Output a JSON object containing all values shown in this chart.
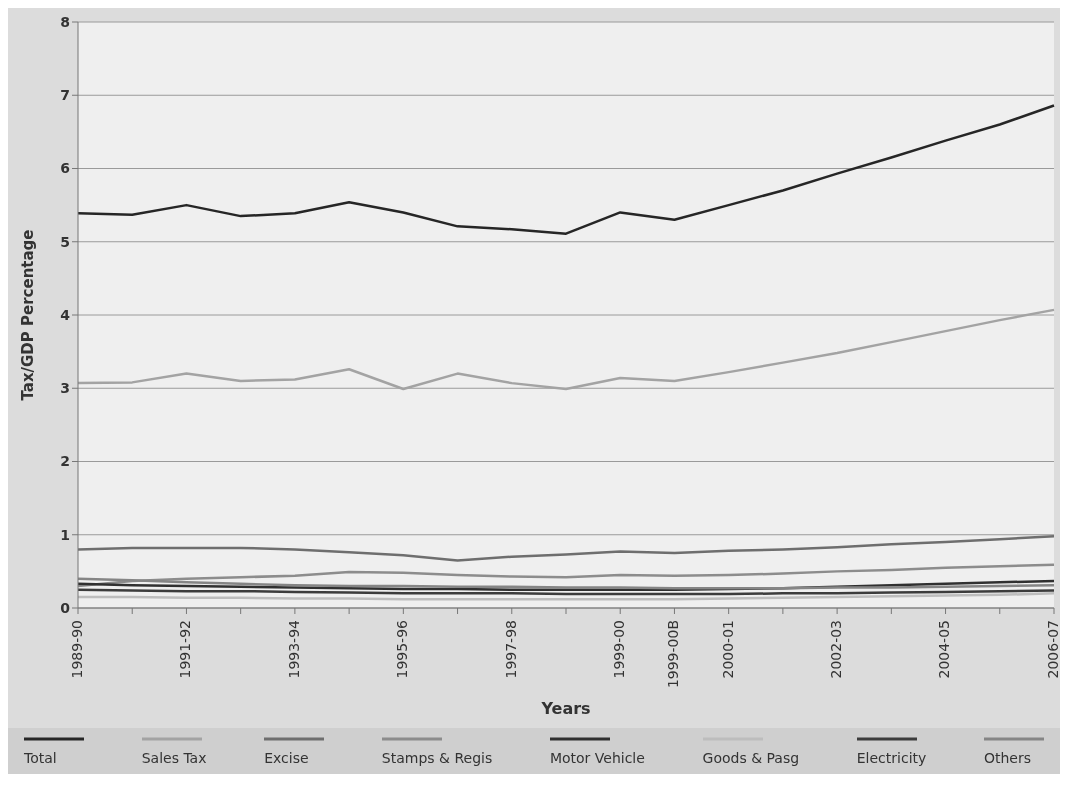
{
  "chart_data": {
    "type": "line",
    "xlabel": "Years",
    "ylabel": "Tax/GDP Percentage",
    "categories": [
      "1989-90",
      null,
      "1991-92",
      null,
      "1993-94",
      null,
      "1995-96",
      null,
      "1997-98",
      null,
      "1999-00",
      "1999-00B",
      "2000-01",
      null,
      "2002-03",
      null,
      "2004-05",
      null,
      "2006-07"
    ],
    "series": [
      {
        "name": "Total",
        "color": "#262626",
        "values": [
          5.39,
          5.37,
          5.5,
          5.35,
          5.39,
          5.54,
          5.4,
          5.21,
          5.17,
          5.11,
          5.4,
          5.3,
          5.5,
          5.7,
          5.93,
          6.15,
          6.38,
          6.6,
          6.86
        ]
      },
      {
        "name": "Sales Tax",
        "color": "#a3a3a3",
        "values": [
          3.07,
          3.08,
          3.2,
          3.1,
          3.12,
          3.26,
          2.99,
          3.2,
          3.07,
          2.99,
          3.14,
          3.1,
          3.22,
          3.35,
          3.48,
          3.63,
          3.78,
          3.93,
          4.07
        ]
      },
      {
        "name": "Excise",
        "color": "#6e6e6e",
        "values": [
          0.8,
          0.82,
          0.82,
          0.82,
          0.8,
          0.76,
          0.72,
          0.65,
          0.7,
          0.73,
          0.77,
          0.75,
          0.78,
          0.8,
          0.83,
          0.87,
          0.9,
          0.94,
          0.98
        ]
      },
      {
        "name": "Stamps & Regis",
        "color": "#8c8c8c",
        "values": [
          0.3,
          0.37,
          0.4,
          0.42,
          0.44,
          0.49,
          0.48,
          0.45,
          0.43,
          0.42,
          0.45,
          0.44,
          0.45,
          0.47,
          0.5,
          0.52,
          0.55,
          0.57,
          0.59
        ]
      },
      {
        "name": "Motor Vehicle",
        "color": "#303030",
        "values": [
          0.33,
          0.31,
          0.3,
          0.29,
          0.28,
          0.27,
          0.26,
          0.26,
          0.25,
          0.25,
          0.25,
          0.25,
          0.26,
          0.27,
          0.29,
          0.31,
          0.33,
          0.35,
          0.37
        ]
      },
      {
        "name": "Goods & Pasg",
        "color": "#bdbdbd",
        "values": [
          0.15,
          0.15,
          0.14,
          0.14,
          0.13,
          0.13,
          0.12,
          0.12,
          0.12,
          0.12,
          0.12,
          0.12,
          0.13,
          0.14,
          0.15,
          0.16,
          0.17,
          0.18,
          0.2
        ]
      },
      {
        "name": "Electricity",
        "color": "#3c3c3c",
        "values": [
          0.25,
          0.24,
          0.23,
          0.23,
          0.22,
          0.21,
          0.2,
          0.2,
          0.2,
          0.19,
          0.19,
          0.19,
          0.19,
          0.2,
          0.2,
          0.21,
          0.22,
          0.23,
          0.24
        ]
      },
      {
        "name": "Others",
        "color": "#858585",
        "values": [
          0.4,
          0.38,
          0.35,
          0.33,
          0.31,
          0.3,
          0.3,
          0.29,
          0.29,
          0.28,
          0.28,
          0.27,
          0.27,
          0.27,
          0.28,
          0.28,
          0.29,
          0.3,
          0.31
        ]
      }
    ],
    "ylim": [
      0,
      8
    ],
    "yticks": [
      0,
      1,
      2,
      3,
      4,
      5,
      6,
      7,
      8
    ],
    "grid": "y",
    "legend": "bottom",
    "marker": "none",
    "line_style": "solid"
  }
}
